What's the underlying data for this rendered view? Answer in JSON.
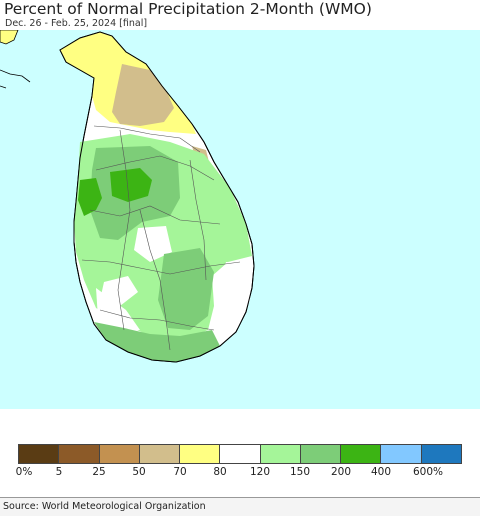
{
  "header": {
    "title": "Percent of Normal Precipitation 2-Month (WMO)",
    "subtitle": "Dec. 26 - Feb. 25, 2024 [final]"
  },
  "map": {
    "colors": {
      "ocean": "#ccffff",
      "lt70": "#d2be8c",
      "lt80": "#ffff82",
      "lt120": "#ffffff",
      "lt150": "#a5f599",
      "lt200": "#7dcd78",
      "lt400": "#3cb414"
    }
  },
  "legend": {
    "colors": [
      "#5a3c14",
      "#8c5a28",
      "#c39150",
      "#d2be8c",
      "#ffff82",
      "#ffffff",
      "#a5f599",
      "#7dcd78",
      "#3cb414",
      "#82c8ff",
      "#1e78be"
    ],
    "labels": [
      "0%",
      "5",
      "25",
      "50",
      "70",
      "80",
      "120",
      "150",
      "200",
      "400",
      "600%"
    ]
  },
  "footer": {
    "source": "Source: World Meteorological Organization"
  }
}
